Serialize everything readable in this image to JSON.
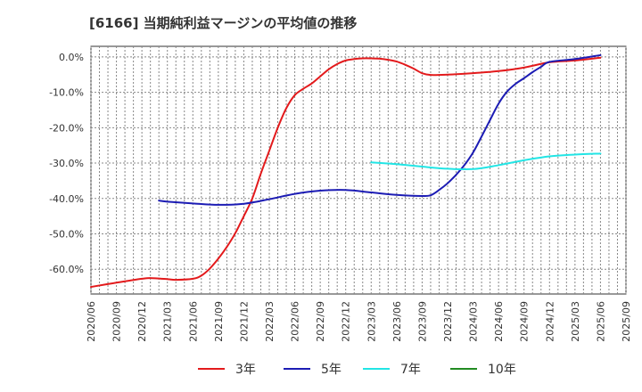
{
  "chart_data": {
    "type": "line",
    "title": "[6166]  当期純利益マージンの平均値の推移",
    "xlabel": "",
    "ylabel": "",
    "ylim": [
      -67,
      3
    ],
    "yticks": [
      0,
      -10,
      -20,
      -30,
      -40,
      -50,
      -60
    ],
    "ytick_labels": [
      "0.0%",
      "-10.0%",
      "-20.0%",
      "-30.0%",
      "-40.0%",
      "-50.0%",
      "-60.0%"
    ],
    "x_range": [
      "2020-06",
      "2025-09"
    ],
    "xtick_labels": [
      "2020/06",
      "2020/09",
      "2020/12",
      "2021/03",
      "2021/06",
      "2021/09",
      "2021/12",
      "2022/03",
      "2022/06",
      "2022/09",
      "2022/12",
      "2023/03",
      "2023/06",
      "2023/09",
      "2023/12",
      "2024/03",
      "2024/06",
      "2024/09",
      "2024/12",
      "2025/03",
      "2025/06",
      "2025/09"
    ],
    "grid": true,
    "legend_position": "bottom",
    "series": [
      {
        "name": "3年",
        "color": "#e31a1c",
        "points": [
          [
            "2020-06",
            -65.0
          ],
          [
            "2020-09",
            -63.8
          ],
          [
            "2020-12",
            -62.7
          ],
          [
            "2021-01",
            -62.5
          ],
          [
            "2021-03",
            -62.8
          ],
          [
            "2021-04",
            -63.0
          ],
          [
            "2021-06",
            -62.7
          ],
          [
            "2021-07",
            -61.8
          ],
          [
            "2021-08",
            -59.8
          ],
          [
            "2021-09",
            -57.0
          ],
          [
            "2021-10",
            -53.7
          ],
          [
            "2021-11",
            -49.8
          ],
          [
            "2021-12",
            -45.0
          ],
          [
            "2022-01",
            -40.0
          ],
          [
            "2022-02",
            -33.0
          ],
          [
            "2022-03",
            -26.5
          ],
          [
            "2022-04",
            -20.0
          ],
          [
            "2022-05",
            -14.5
          ],
          [
            "2022-06",
            -10.8
          ],
          [
            "2022-07",
            -9.0
          ],
          [
            "2022-08",
            -7.5
          ],
          [
            "2022-09",
            -5.5
          ],
          [
            "2022-10",
            -3.5
          ],
          [
            "2022-11",
            -2.0
          ],
          [
            "2022-12",
            -1.0
          ],
          [
            "2023-01",
            -0.6
          ],
          [
            "2023-02",
            -0.4
          ],
          [
            "2023-03",
            -0.4
          ],
          [
            "2023-04",
            -0.5
          ],
          [
            "2023-05",
            -0.8
          ],
          [
            "2023-06",
            -1.3
          ],
          [
            "2023-07",
            -2.2
          ],
          [
            "2023-08",
            -3.3
          ],
          [
            "2023-09",
            -4.6
          ],
          [
            "2023-10",
            -5.1
          ],
          [
            "2023-12",
            -5.0
          ],
          [
            "2024-03",
            -4.6
          ],
          [
            "2024-06",
            -4.0
          ],
          [
            "2024-09",
            -3.0
          ],
          [
            "2024-12",
            -1.5
          ],
          [
            "2025-03",
            -1.0
          ],
          [
            "2025-06",
            -0.2
          ]
        ]
      },
      {
        "name": "5年",
        "color": "#1c1cb4",
        "points": [
          [
            "2021-02",
            -40.6
          ],
          [
            "2021-03",
            -40.9
          ],
          [
            "2021-06",
            -41.4
          ],
          [
            "2021-09",
            -41.8
          ],
          [
            "2021-12",
            -41.5
          ],
          [
            "2022-03",
            -40.2
          ],
          [
            "2022-06",
            -38.7
          ],
          [
            "2022-09",
            -37.8
          ],
          [
            "2022-12",
            -37.6
          ],
          [
            "2023-03",
            -38.3
          ],
          [
            "2023-06",
            -39.0
          ],
          [
            "2023-09",
            -39.3
          ],
          [
            "2023-10",
            -39.1
          ],
          [
            "2023-11",
            -37.6
          ],
          [
            "2023-12",
            -35.7
          ],
          [
            "2024-01",
            -33.3
          ],
          [
            "2024-02",
            -30.5
          ],
          [
            "2024-03",
            -27.0
          ],
          [
            "2024-04",
            -22.5
          ],
          [
            "2024-05",
            -17.8
          ],
          [
            "2024-06",
            -13.2
          ],
          [
            "2024-07",
            -9.8
          ],
          [
            "2024-08",
            -7.6
          ],
          [
            "2024-09",
            -6.0
          ],
          [
            "2024-10",
            -4.3
          ],
          [
            "2024-11",
            -2.8
          ],
          [
            "2024-12",
            -1.4
          ],
          [
            "2025-03",
            -0.6
          ],
          [
            "2025-06",
            0.5
          ]
        ]
      },
      {
        "name": "7年",
        "color": "#22e5e5",
        "points": [
          [
            "2023-03",
            -29.8
          ],
          [
            "2023-06",
            -30.3
          ],
          [
            "2023-09",
            -31.0
          ],
          [
            "2023-12",
            -31.6
          ],
          [
            "2024-03",
            -31.7
          ],
          [
            "2024-06",
            -30.6
          ],
          [
            "2024-09",
            -29.2
          ],
          [
            "2024-12",
            -28.1
          ],
          [
            "2025-03",
            -27.6
          ],
          [
            "2025-06",
            -27.3
          ]
        ]
      },
      {
        "name": "10年",
        "color": "#228b22",
        "points": []
      }
    ]
  }
}
